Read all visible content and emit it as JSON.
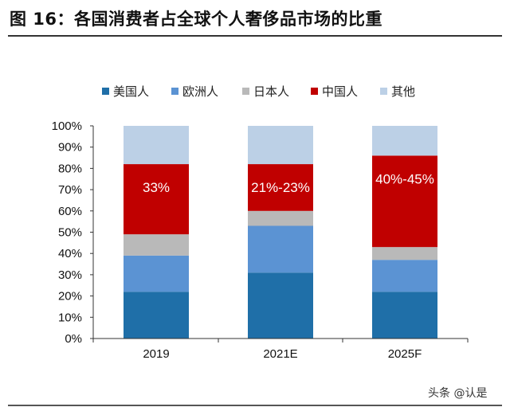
{
  "figure": {
    "title": "图 16：各国消费者占全球个人奢侈品市场的比重",
    "watermark": "头条 @认是"
  },
  "chart_data": {
    "type": "bar",
    "stacked": true,
    "categories": [
      "2019",
      "2021E",
      "2025F"
    ],
    "series": [
      {
        "name": "美国人",
        "color": "#1F6FA8",
        "values": [
          22,
          31,
          22
        ]
      },
      {
        "name": "欧洲人",
        "color": "#5B93D3",
        "values": [
          17,
          22,
          15
        ]
      },
      {
        "name": "日本人",
        "color": "#B9B9B9",
        "values": [
          10,
          7,
          6
        ]
      },
      {
        "name": "中国人",
        "color": "#C00000",
        "values": [
          33,
          22,
          43
        ]
      },
      {
        "name": "其他",
        "color": "#BCD0E6",
        "values": [
          18,
          18,
          14
        ]
      }
    ],
    "annotations": [
      "33%",
      "21%-23%",
      "40%-45%"
    ],
    "ylim": [
      0,
      100
    ],
    "y_ticks": [
      "0%",
      "10%",
      "20%",
      "30%",
      "40%",
      "50%",
      "60%",
      "70%",
      "80%",
      "90%",
      "100%"
    ],
    "legend_position": "top",
    "grid": false
  }
}
